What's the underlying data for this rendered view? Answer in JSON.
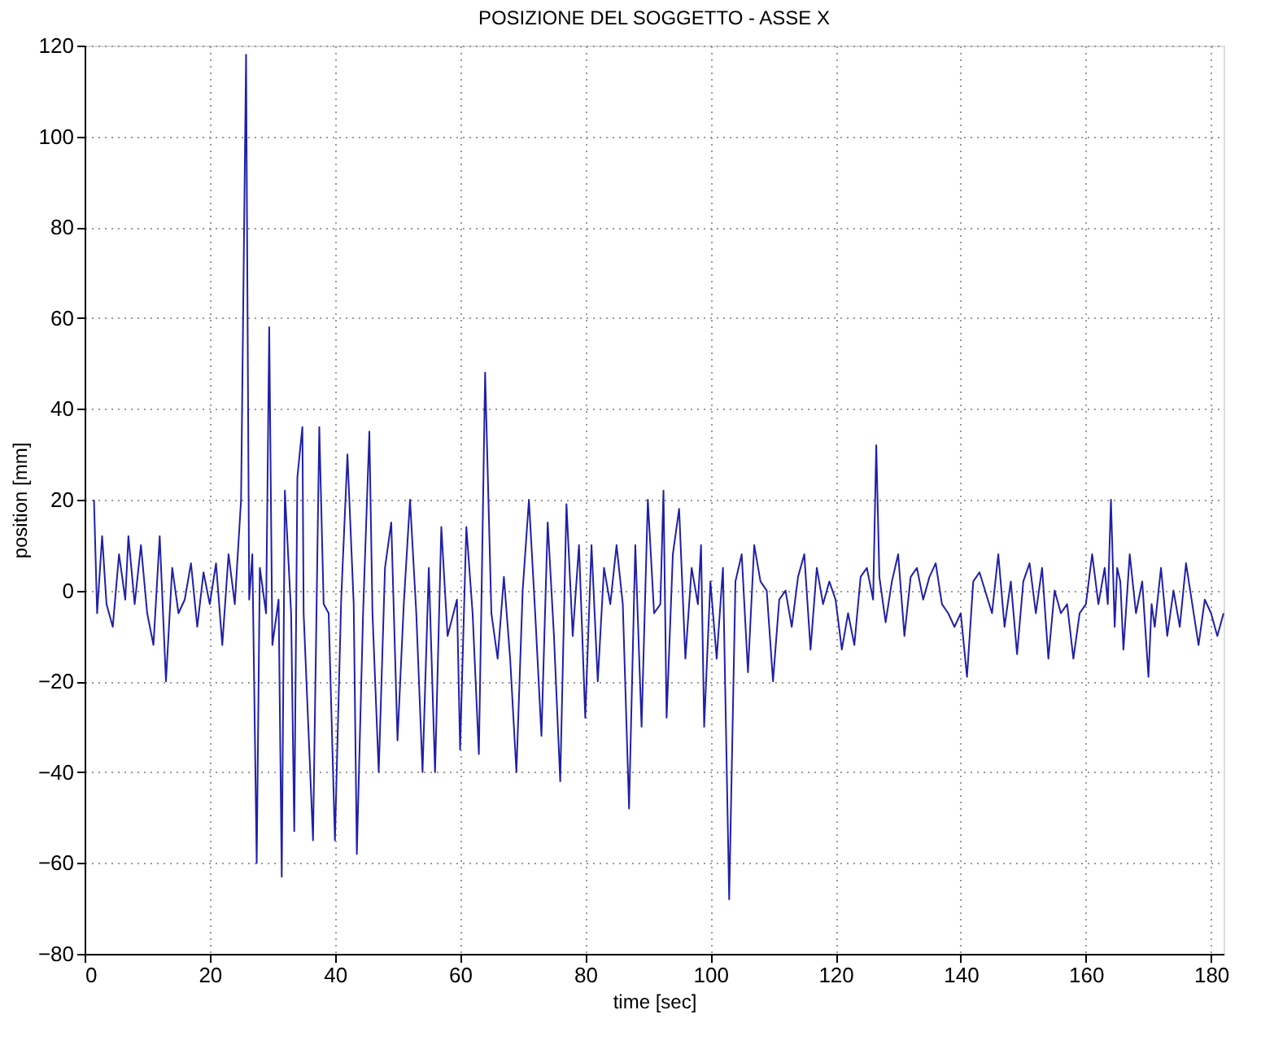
{
  "chart_data": {
    "type": "line",
    "title": "POSIZIONE DEL SOGGETTO - ASSE X",
    "xlabel": "time [sec]",
    "ylabel": "position [mm]",
    "xlim": [
      0,
      182
    ],
    "ylim": [
      -80,
      120
    ],
    "xticks": [
      0,
      20,
      40,
      60,
      80,
      100,
      120,
      140,
      160,
      180
    ],
    "yticks": [
      -80,
      -60,
      -40,
      -20,
      0,
      20,
      40,
      60,
      80,
      100,
      120
    ],
    "grid": true,
    "line_style": "solid",
    "marker": "none",
    "series": [
      {
        "color": "#2020a8",
        "x": [
          1.5,
          2,
          2.8,
          3.5,
          4.5,
          5.5,
          6.5,
          7,
          8,
          9,
          10,
          11,
          12,
          13,
          14,
          15,
          16,
          17,
          18,
          19,
          20,
          21,
          22,
          23,
          24,
          25,
          25.8,
          26.3,
          26.8,
          27.5,
          28,
          29,
          29.5,
          30,
          31,
          31.5,
          32,
          33,
          33.5,
          34,
          34.8,
          35,
          36.5,
          37.5,
          38.2,
          39,
          40,
          41,
          42,
          43,
          43.5,
          44.5,
          45.5,
          46,
          47,
          48,
          49,
          50,
          51,
          52,
          53,
          54,
          55,
          56,
          57,
          58,
          59.5,
          60,
          61,
          62,
          63,
          63.5,
          64,
          65,
          66,
          67,
          68,
          69,
          70,
          71,
          72,
          73,
          74,
          75,
          76,
          77,
          78,
          79,
          80,
          81,
          82,
          83,
          84,
          85,
          86,
          87,
          88,
          89,
          90,
          91,
          92,
          92.5,
          93,
          94,
          95,
          96,
          97,
          98,
          98.5,
          99,
          100,
          101,
          102,
          103,
          104,
          105,
          106,
          107,
          108,
          109,
          110,
          111,
          112,
          113,
          114,
          115,
          116,
          117,
          118,
          119,
          120,
          121,
          122,
          123,
          124,
          125,
          126,
          126.5,
          127,
          128,
          129,
          130,
          131,
          132,
          133,
          134,
          135,
          136,
          137,
          138,
          139,
          140,
          141,
          142,
          143,
          145,
          146,
          147,
          148,
          149,
          150,
          151,
          152,
          153,
          154,
          155,
          156,
          157,
          158,
          159,
          160,
          161,
          162,
          163,
          163.5,
          164,
          164.6,
          165,
          165.5,
          166,
          167,
          168,
          169,
          170,
          170.5,
          171,
          172,
          173,
          174,
          175,
          176,
          177,
          178,
          179,
          180,
          181,
          182
        ],
        "values": [
          20,
          -5,
          12,
          -3,
          -8,
          8,
          -2,
          12,
          -3,
          10,
          -5,
          -12,
          12,
          -20,
          5,
          -5,
          -2,
          6,
          -8,
          4,
          -3,
          6,
          -12,
          8,
          -3,
          20,
          118,
          -2,
          8,
          -60,
          5,
          -5,
          58,
          -12,
          -2,
          -63,
          22,
          -5,
          -53,
          25,
          36,
          -5,
          -55,
          36,
          -3,
          -5,
          -55,
          -2,
          30,
          -3,
          -58,
          -5,
          35,
          -5,
          -40,
          5,
          15,
          -33,
          -3,
          20,
          -5,
          -40,
          5,
          -40,
          14,
          -10,
          -2,
          -35,
          14,
          -5,
          -36,
          5,
          48,
          -5,
          -15,
          3,
          -15,
          -40,
          0,
          20,
          -5,
          -32,
          15,
          -10,
          -42,
          19,
          -10,
          10,
          -28,
          10,
          -20,
          5,
          -3,
          10,
          -3,
          -48,
          10,
          -30,
          20,
          -5,
          -3,
          22,
          -28,
          8,
          18,
          -15,
          5,
          -3,
          10,
          -30,
          2,
          -15,
          5,
          -68,
          2,
          8,
          -18,
          10,
          2,
          0,
          -20,
          -2,
          0,
          -8,
          3,
          8,
          -13,
          5,
          -3,
          2,
          -2,
          -13,
          -5,
          -12,
          3,
          5,
          -2,
          32,
          3,
          -7,
          2,
          8,
          -10,
          3,
          5,
          -2,
          3,
          6,
          -3,
          -5,
          -8,
          -5,
          -19,
          2,
          4,
          -5,
          8,
          -8,
          2,
          -14,
          2,
          6,
          -5,
          5,
          -15,
          0,
          -5,
          -3,
          -15,
          -5,
          -3,
          8,
          -3,
          5,
          -3,
          20,
          -8,
          5,
          2,
          -13,
          8,
          -5,
          2,
          -19,
          -3,
          -8,
          5,
          -10,
          0,
          -8,
          6,
          -3,
          -12,
          -2,
          -5,
          -10,
          -5
        ]
      }
    ]
  }
}
